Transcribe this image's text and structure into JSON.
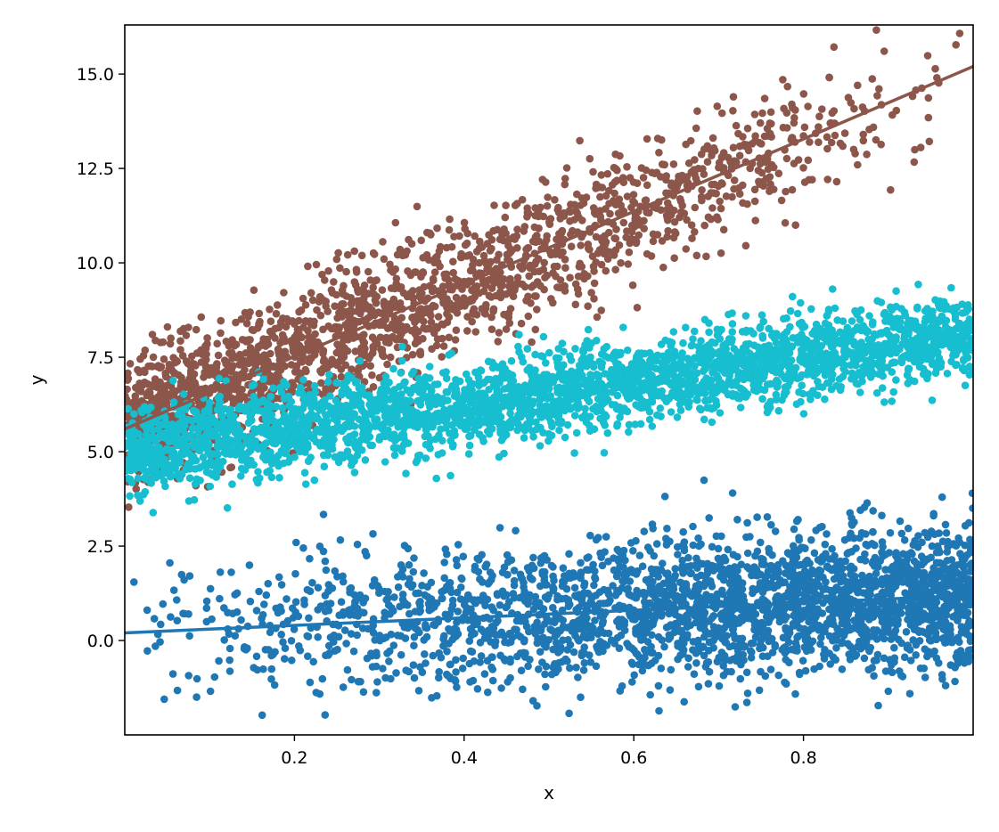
{
  "chart_data": {
    "type": "scatter",
    "title": "",
    "xlabel": "x",
    "ylabel": "y",
    "xlim": [
      0.0,
      1.0
    ],
    "ylim": [
      -2.5,
      16.3
    ],
    "grid": false,
    "x_ticks": [
      0.2,
      0.4,
      0.6,
      0.8
    ],
    "x_tick_labels": [
      "0.2",
      "0.4",
      "0.6",
      "0.8"
    ],
    "y_ticks": [
      0.0,
      2.5,
      5.0,
      7.5,
      10.0,
      12.5,
      15.0
    ],
    "y_tick_labels": [
      "0.0",
      "2.5",
      "5.0",
      "7.5",
      "10.0",
      "12.5",
      "15.0"
    ],
    "series": [
      {
        "color": "#8c564b",
        "point_count": 2000,
        "density_trend": "decreasing with x",
        "spread_sd": 0.85,
        "fit_line": {
          "x": [
            0.0,
            1.0
          ],
          "y": [
            5.6,
            15.2
          ]
        }
      },
      {
        "color": "#17becf",
        "point_count": 3000,
        "density_trend": "uniform",
        "spread_sd": 0.55,
        "fit_line": null,
        "approx_center": {
          "x": [
            0.0,
            1.0
          ],
          "y": [
            5.0,
            8.1
          ]
        }
      },
      {
        "color": "#1f77b4",
        "point_count": 2600,
        "density_trend": "increasing with x",
        "spread_sd": 0.95,
        "fit_line": {
          "x": [
            0.0,
            1.0
          ],
          "y": [
            0.2,
            1.2
          ]
        }
      }
    ]
  }
}
